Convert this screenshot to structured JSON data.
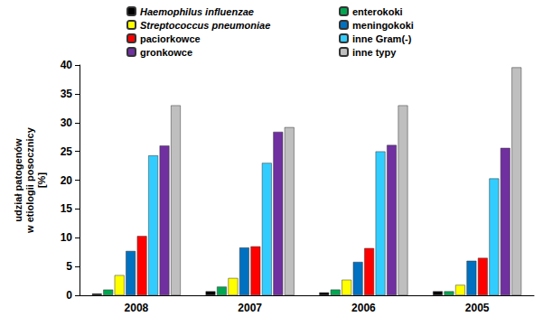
{
  "chart_data": {
    "type": "bar",
    "y_label": "udział patogenów\nw etiologii posocznicy\n[%]",
    "categories": [
      "2008",
      "2007",
      "2006",
      "2005"
    ],
    "series": [
      {
        "name": "Haemophilus influenzae",
        "color": "#000000",
        "values": [
          0.3,
          0.7,
          0.5,
          0.7
        ]
      },
      {
        "name": "enterokoki",
        "color": "#00A651",
        "values": [
          1.0,
          1.5,
          1.0,
          0.7
        ]
      },
      {
        "name": "Streptococcus pneumoniae",
        "color": "#FFFF00",
        "values": [
          3.5,
          3.0,
          2.7,
          1.8
        ]
      },
      {
        "name": "meningokoki",
        "color": "#0070C0",
        "values": [
          7.7,
          8.3,
          5.8,
          6.0
        ]
      },
      {
        "name": "paciorkowce",
        "color": "#FF0000",
        "values": [
          10.3,
          8.5,
          8.2,
          6.5
        ]
      },
      {
        "name": "inne Gram(-)",
        "color": "#33CCFF",
        "values": [
          24.3,
          23.0,
          25.0,
          20.3
        ]
      },
      {
        "name": "gronkowce",
        "color": "#7030A0",
        "values": [
          26.0,
          28.4,
          26.1,
          25.6
        ]
      },
      {
        "name": "inne typy",
        "color": "#BFBFBF",
        "values": [
          33.0,
          29.2,
          33.0,
          39.6
        ]
      }
    ],
    "ylim": [
      0,
      40
    ],
    "yticks": [
      0,
      5,
      10,
      15,
      20,
      25,
      30,
      35,
      40
    ],
    "grid": false,
    "legend": "top"
  }
}
